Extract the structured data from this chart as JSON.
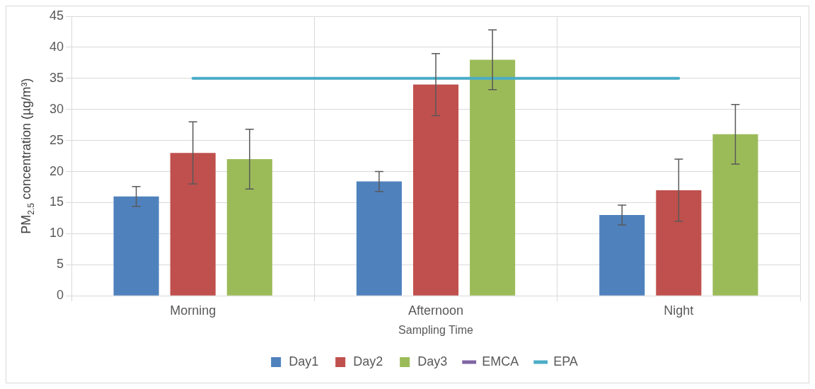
{
  "chart_data": {
    "type": "bar",
    "xlabel": "Sampling Time",
    "ylabel": "PM$_{2.5}$ concentration (µg/m³)",
    "categories": [
      "Morning",
      "Afternoon",
      "Night"
    ],
    "series": [
      {
        "name": "Day1",
        "color": "#4f81bd",
        "values": [
          16,
          18.4,
          13
        ],
        "errors": [
          1.6,
          1.6,
          1.6
        ]
      },
      {
        "name": "Day2",
        "color": "#c0504d",
        "values": [
          23,
          34,
          17
        ],
        "errors": [
          5,
          5,
          5
        ]
      },
      {
        "name": "Day3",
        "color": "#9bbb59",
        "values": [
          22,
          38,
          26
        ],
        "errors": [
          4.8,
          4.8,
          4.8
        ]
      },
      {
        "name": "EMCA",
        "type": "line",
        "color": "#8064a2",
        "values": [
          null,
          null,
          null
        ]
      },
      {
        "name": "EPA",
        "type": "line",
        "color": "#4bacc6",
        "values": [
          35,
          35,
          35
        ]
      }
    ],
    "ylim": [
      0,
      45
    ],
    "yticks": [
      0,
      5,
      10,
      15,
      20,
      25,
      30,
      35,
      40,
      45
    ],
    "grid": true,
    "legend": "bottom",
    "marker": "none",
    "line_style": "solid"
  }
}
